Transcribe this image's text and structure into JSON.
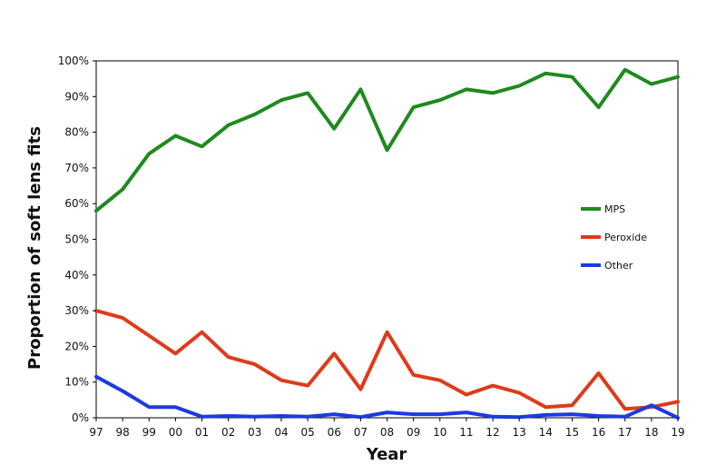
{
  "chart_data": {
    "type": "line",
    "title": "",
    "xlabel": "Year",
    "ylabel": "Proportion of soft lens fits",
    "x": [
      "97",
      "98",
      "99",
      "00",
      "01",
      "02",
      "03",
      "04",
      "05",
      "06",
      "07",
      "08",
      "09",
      "10",
      "11",
      "12",
      "13",
      "14",
      "15",
      "16",
      "17",
      "18",
      "19"
    ],
    "y_ticks": [
      "0%",
      "10%",
      "20%",
      "30%",
      "40%",
      "50%",
      "60%",
      "70%",
      "80%",
      "90%",
      "100%"
    ],
    "ylim": [
      0,
      100
    ],
    "grid": false,
    "legend_position": "right",
    "series": [
      {
        "name": "MPS",
        "color": "#1f8a1f",
        "values": [
          58,
          64,
          74,
          79,
          76,
          82,
          85,
          89,
          91,
          81,
          92,
          75,
          87,
          89,
          92,
          91,
          93,
          96.5,
          95.5,
          87,
          97.5,
          93.5,
          95.5
        ]
      },
      {
        "name": "Peroxide",
        "color": "#e03a1a",
        "values": [
          30,
          28,
          23,
          18,
          24,
          17,
          15,
          10.5,
          9,
          18,
          8,
          24,
          12,
          10.5,
          6.5,
          9,
          7,
          3,
          3.5,
          12.5,
          2.5,
          3,
          4.5
        ]
      },
      {
        "name": "Other",
        "color": "#1c3ae0",
        "values": [
          11.5,
          7.5,
          3,
          3,
          0.3,
          0.5,
          0.3,
          0.5,
          0.3,
          1,
          0.2,
          1.5,
          1,
          1,
          1.5,
          0.3,
          0.2,
          0.8,
          1,
          0.5,
          0.3,
          3.5,
          0
        ]
      }
    ]
  }
}
